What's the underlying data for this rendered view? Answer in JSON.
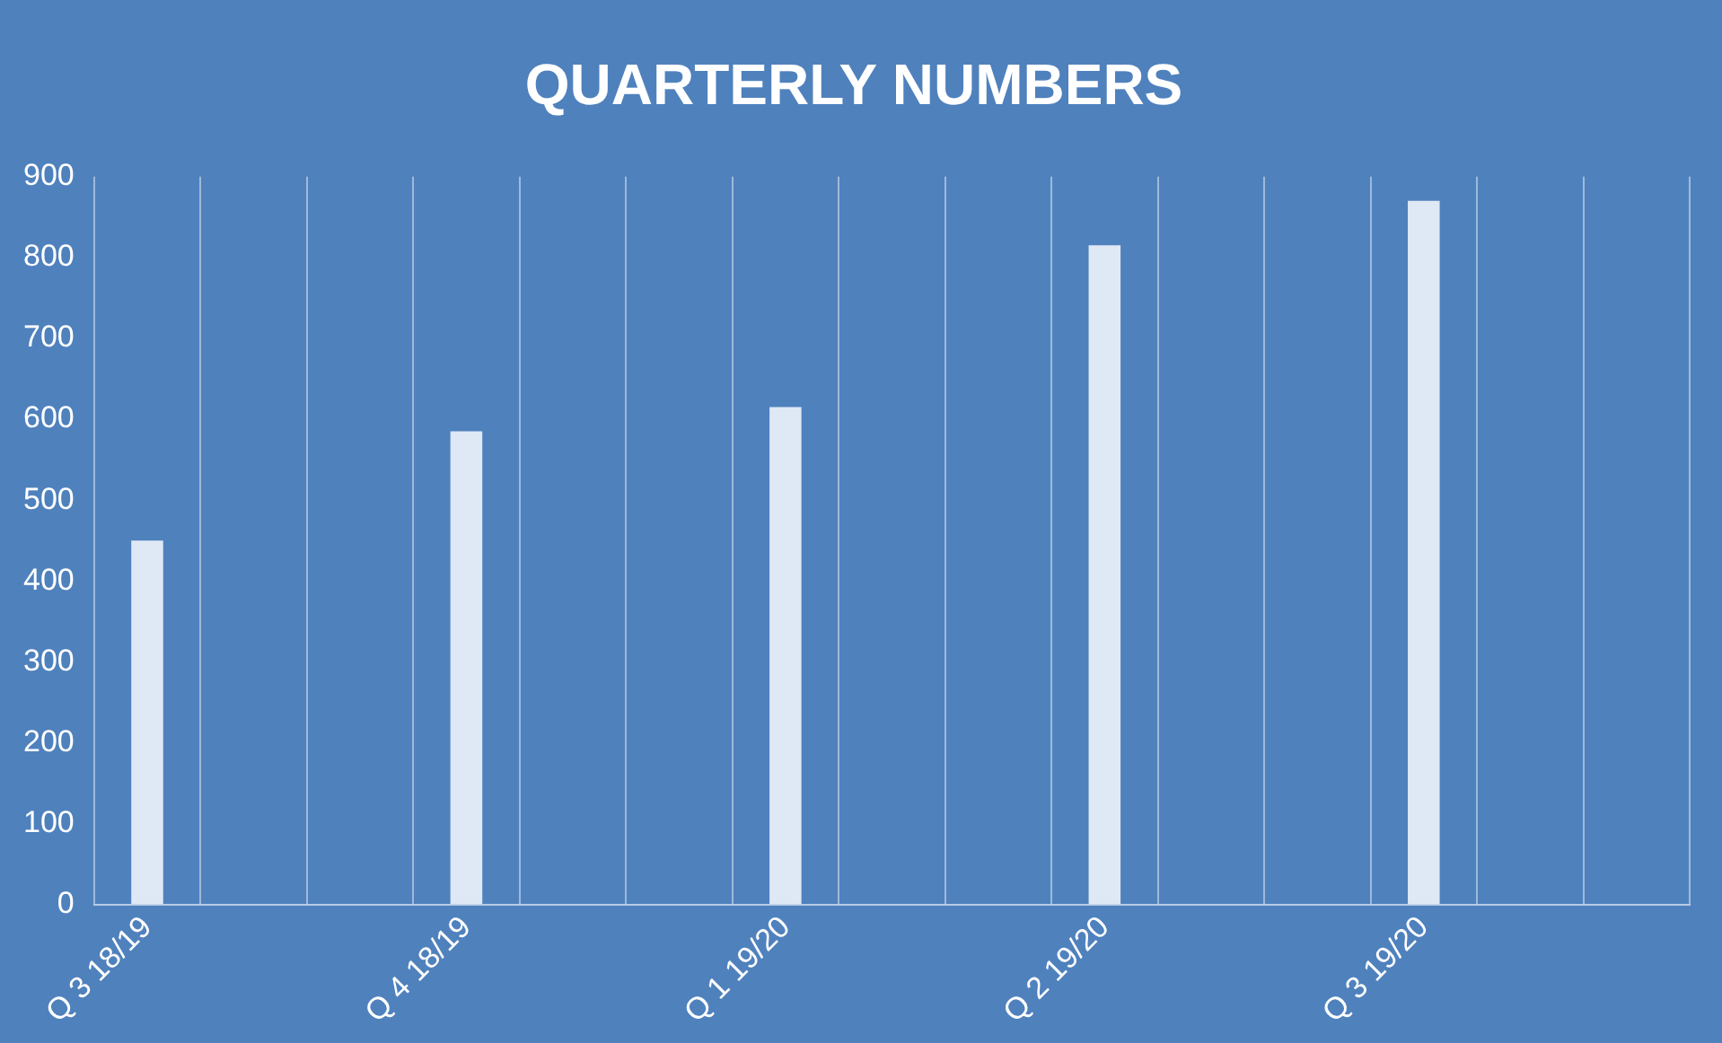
{
  "chart_data": {
    "type": "bar",
    "title": "QUARTERLY NUMBERS",
    "categories": [
      "Q 3 18/19",
      null,
      null,
      "Q 4 18/19",
      null,
      null,
      "Q 1 19/20",
      null,
      null,
      "Q 2 19/20",
      null,
      null,
      "Q 3 19/20",
      null,
      null
    ],
    "values": [
      450,
      null,
      null,
      585,
      null,
      null,
      615,
      null,
      null,
      815,
      null,
      null,
      870,
      null,
      null
    ],
    "color": "#dfe8f5",
    "ylim": [
      0,
      900
    ],
    "yticks": [
      0,
      100,
      200,
      300,
      400,
      500,
      600,
      700,
      800,
      900
    ],
    "grid": "x",
    "legend": false
  }
}
